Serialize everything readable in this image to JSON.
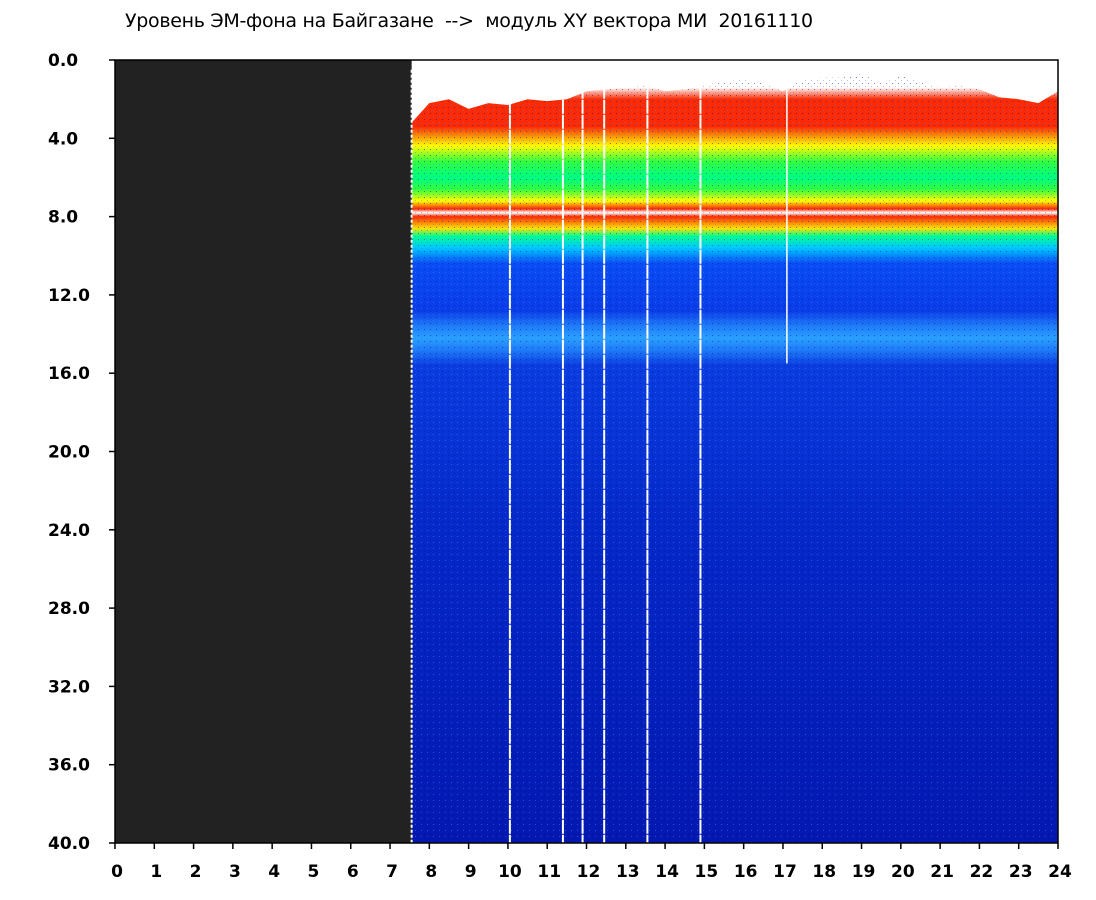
{
  "chart_data": {
    "type": "heatmap",
    "title": "Уровень ЭМ-фона на Байгазане  -->  модуль XY вектора МИ  20161110",
    "x_range": [
      0,
      24
    ],
    "y_range": [
      0.0,
      40.0
    ],
    "y_inverted": true,
    "x_tick_labels": [
      "0",
      "1",
      "2",
      "3",
      "4",
      "5",
      "6",
      "7",
      "8",
      "9",
      "10",
      "11",
      "12",
      "13",
      "14",
      "15",
      "16",
      "17",
      "18",
      "19",
      "20",
      "21",
      "22",
      "23",
      "24"
    ],
    "y_tick_labels": [
      "0.0",
      "4.0",
      "8.0",
      "12.0",
      "16.0",
      "20.0",
      "24.0",
      "28.0",
      "32.0",
      "36.0",
      "40.0"
    ],
    "no_data_until_x": 7.55,
    "gap_lines_x": [
      7.55,
      10.05,
      11.4,
      11.9,
      12.45,
      13.55,
      14.9
    ],
    "spike_line_x": 17.1,
    "colormap": [
      "#0000b0",
      "#0a3cf0",
      "#00c8ff",
      "#00ff60",
      "#ffff00",
      "#ff1e00",
      "#ffffff"
    ],
    "no_data_color": "#222222"
  }
}
